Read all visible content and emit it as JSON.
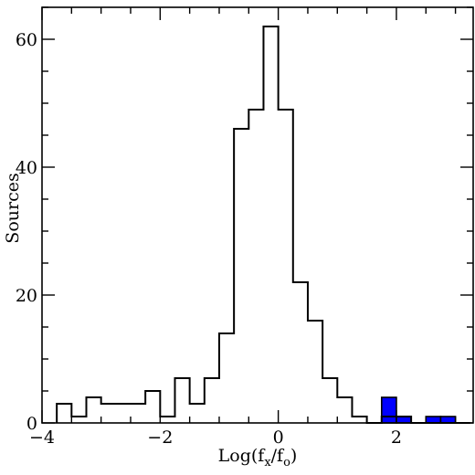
{
  "chart_data": {
    "type": "histogram",
    "xlabel_parts": {
      "base": "Log(f",
      "sub1": "x",
      "mid": "/f",
      "sub2": "o",
      "end": ")"
    },
    "ylabel": "Sources",
    "xlim": [
      -4,
      3.3
    ],
    "ylim": [
      0,
      65
    ],
    "x_ticks": [
      -4,
      -2,
      0,
      2
    ],
    "x_tick_labels": [
      "−4",
      "−2",
      "0",
      "2"
    ],
    "y_ticks": [
      0,
      20,
      40,
      60
    ],
    "y_tick_labels": [
      "0",
      "20",
      "40",
      "60"
    ],
    "series": [
      {
        "style": "step-outline",
        "bin_edges": [
          -3.75,
          -3.5,
          -3.25,
          -3.0,
          -2.75,
          -2.5,
          -2.25,
          -2.0,
          -1.75,
          -1.5,
          -1.25,
          -1.0,
          -0.75,
          -0.5,
          -0.25,
          0.0,
          0.25,
          0.5,
          0.75,
          1.0,
          1.25,
          1.5,
          1.75,
          2.0,
          2.25,
          2.5,
          2.75,
          3.0,
          3.25
        ],
        "counts": [
          3,
          1,
          4,
          3,
          3,
          3,
          5,
          1,
          7,
          3,
          7,
          14,
          46,
          49,
          62,
          49,
          22,
          16,
          7,
          4,
          1,
          0,
          1,
          1,
          0,
          0,
          0,
          0
        ]
      },
      {
        "style": "filled",
        "color": "#0000ff",
        "bin_edges": [
          1.75,
          2.0,
          2.25,
          2.5,
          2.75,
          3.0
        ],
        "counts": [
          4,
          1,
          0,
          1,
          1
        ]
      }
    ]
  }
}
